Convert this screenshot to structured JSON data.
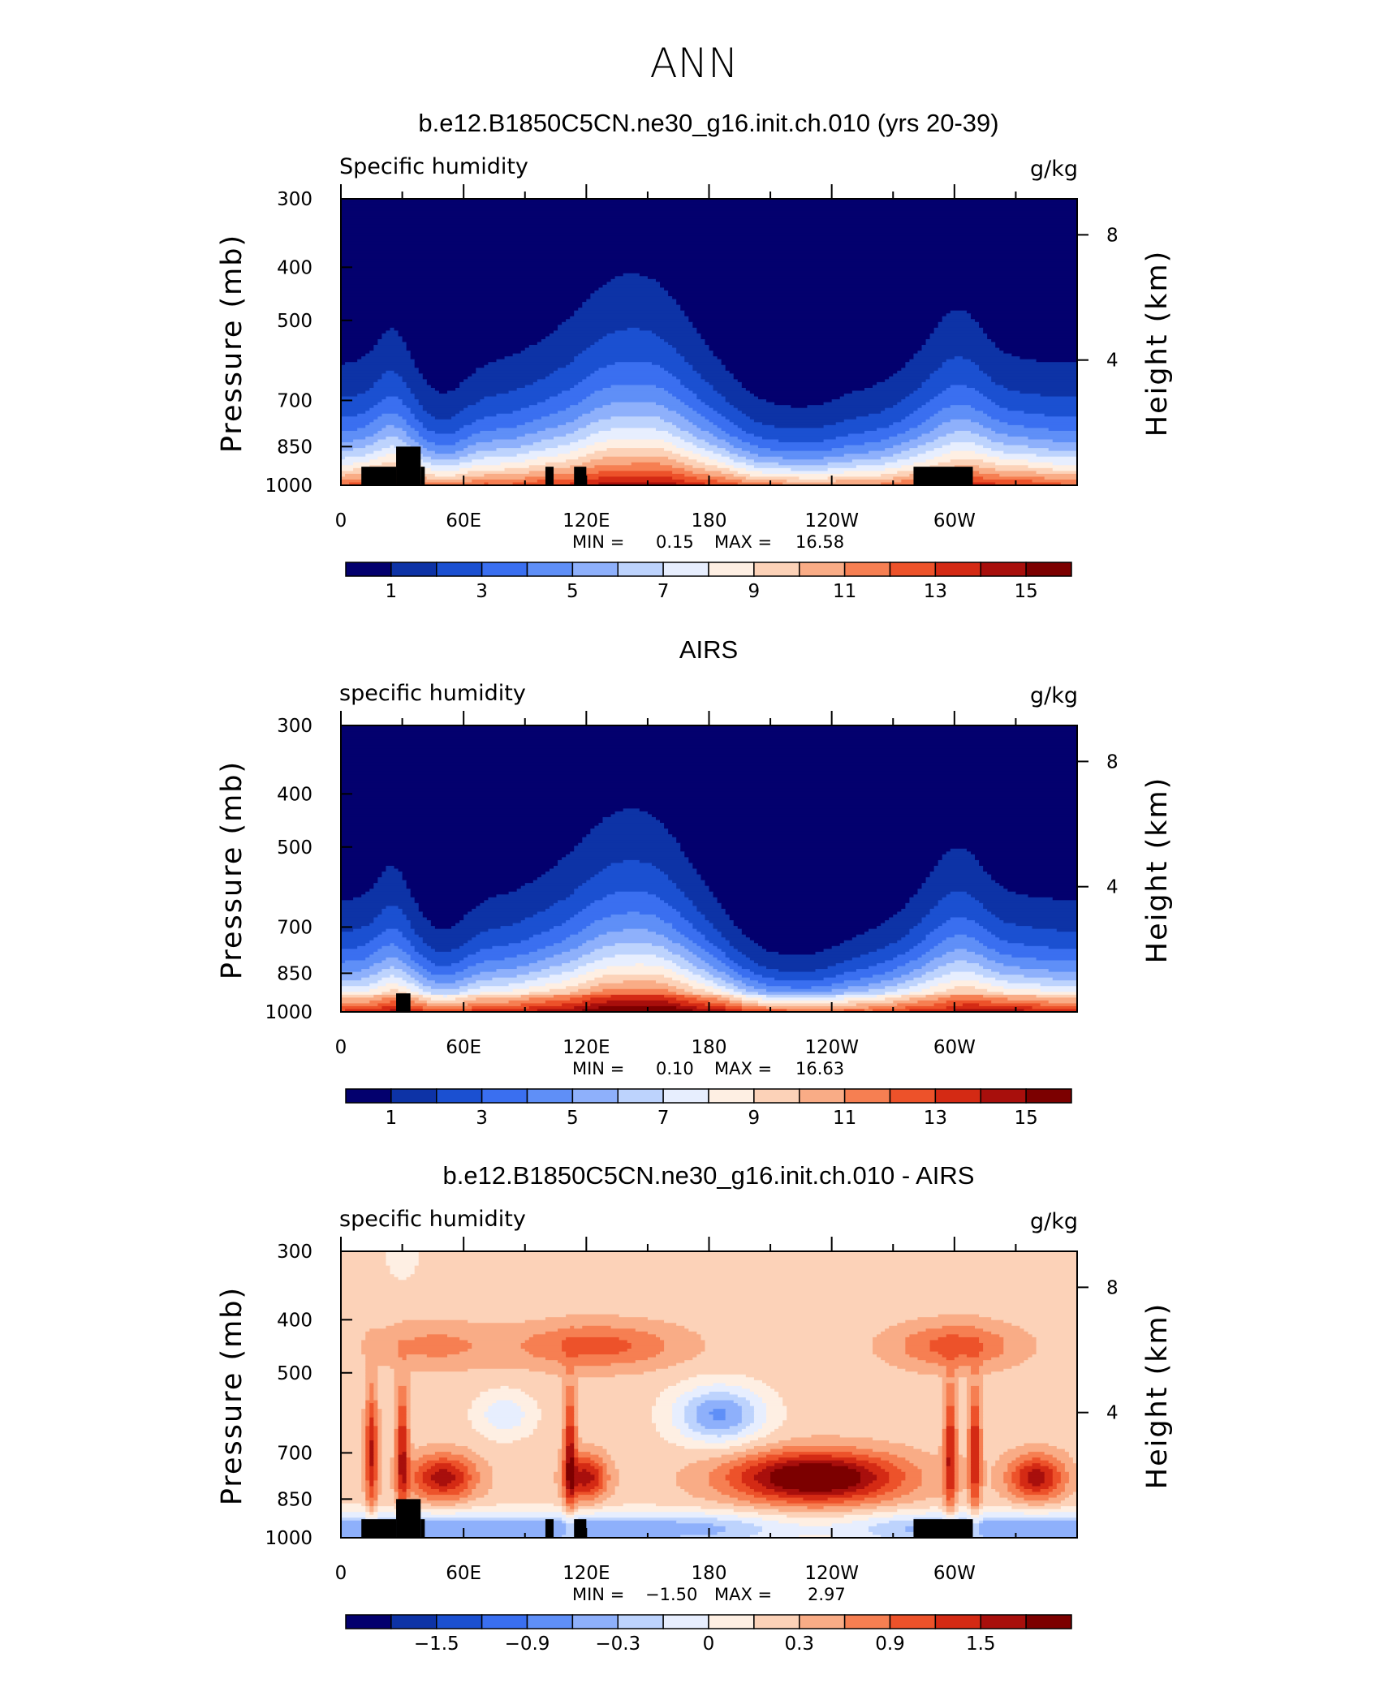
{
  "figure_title": "ANN",
  "cmap_abs": [
    "#03006e",
    "#0d33a6",
    "#1b50d1",
    "#3a6ff0",
    "#5f8ff7",
    "#8eb0fb",
    "#bdd3fd",
    "#e7eefe",
    "#feefe3",
    "#fcd2b8",
    "#f9ac86",
    "#f67f52",
    "#ed522a",
    "#d42a14",
    "#a80f0c",
    "#7c0000"
  ],
  "cmap_diff": [
    "#03006e",
    "#0d33a6",
    "#1b50d1",
    "#3a6ff0",
    "#5f8ff7",
    "#8eb0fb",
    "#bdd3fd",
    "#e7eefe",
    "#feefe3",
    "#fcd2b8",
    "#f9ac86",
    "#f67f52",
    "#ed522a",
    "#d42a14",
    "#a80f0c",
    "#7c0000"
  ],
  "chart_data": [
    {
      "type": "heatmap",
      "title": "b.e12.B1850C5CN.ne30_g16.init.ch.010 (yrs 20-39)",
      "left_label": "Specific humidity",
      "right_label": "g/kg",
      "xlabel": "",
      "ylabel": "Pressure (mb)",
      "y2label": "Height (km)",
      "x_ticks": [
        "0",
        "60E",
        "120E",
        "180",
        "120W",
        "60W"
      ],
      "x_tick_values": [
        0,
        60,
        120,
        180,
        240,
        300
      ],
      "xlim": [
        0,
        360
      ],
      "y_ticks": [
        "300",
        "400",
        "500",
        "700",
        "850",
        "1000"
      ],
      "y_tick_values": [
        300,
        400,
        500,
        700,
        850,
        1000
      ],
      "ylim": [
        300,
        1000
      ],
      "y2_ticks": [
        "8",
        "4"
      ],
      "y2_tick_values": [
        8,
        4
      ],
      "min_label": "MIN =",
      "min_value": "0.15",
      "max_label": "MAX =",
      "max_value": "16.58",
      "colorbar_labels": [
        "1",
        "3",
        "5",
        "7",
        "9",
        "11",
        "13",
        "15"
      ],
      "colorbar_label_values": [
        1,
        3,
        5,
        7,
        9,
        11,
        13,
        15
      ],
      "colorbar_range": [
        0,
        16
      ],
      "field": "model",
      "terrain_blocks": [
        [
          10,
          27,
          925,
          1000
        ],
        [
          27,
          39,
          850,
          1000
        ],
        [
          39,
          41,
          925,
          1000
        ],
        [
          100,
          104,
          925,
          1000
        ],
        [
          114,
          120,
          925,
          1000
        ],
        [
          280,
          309,
          925,
          1000
        ]
      ]
    },
    {
      "type": "heatmap",
      "title": "AIRS",
      "left_label": "specific humidity",
      "right_label": "g/kg",
      "xlabel": "",
      "ylabel": "Pressure (mb)",
      "y2label": "Height (km)",
      "x_ticks": [
        "0",
        "60E",
        "120E",
        "180",
        "120W",
        "60W"
      ],
      "x_tick_values": [
        0,
        60,
        120,
        180,
        240,
        300
      ],
      "xlim": [
        0,
        360
      ],
      "y_ticks": [
        "300",
        "400",
        "500",
        "700",
        "850",
        "1000"
      ],
      "y_tick_values": [
        300,
        400,
        500,
        700,
        850,
        1000
      ],
      "ylim": [
        300,
        1000
      ],
      "y2_ticks": [
        "8",
        "4"
      ],
      "y2_tick_values": [
        8,
        4
      ],
      "min_label": "MIN =",
      "min_value": "0.10",
      "max_label": "MAX =",
      "max_value": "16.63",
      "colorbar_labels": [
        "1",
        "3",
        "5",
        "7",
        "9",
        "11",
        "13",
        "15"
      ],
      "colorbar_label_values": [
        1,
        3,
        5,
        7,
        9,
        11,
        13,
        15
      ],
      "colorbar_range": [
        0,
        16
      ],
      "field": "obs",
      "terrain_blocks": [
        [
          27,
          34,
          925,
          1000
        ]
      ]
    },
    {
      "type": "heatmap",
      "title": "b.e12.B1850C5CN.ne30_g16.init.ch.010 - AIRS",
      "left_label": "specific humidity",
      "right_label": "g/kg",
      "xlabel": "",
      "ylabel": "Pressure (mb)",
      "y2label": "Height (km)",
      "x_ticks": [
        "0",
        "60E",
        "120E",
        "180",
        "120W",
        "60W"
      ],
      "x_tick_values": [
        0,
        60,
        120,
        180,
        240,
        300
      ],
      "xlim": [
        0,
        360
      ],
      "y_ticks": [
        "300",
        "400",
        "500",
        "700",
        "850",
        "1000"
      ],
      "y_tick_values": [
        300,
        400,
        500,
        700,
        850,
        1000
      ],
      "ylim": [
        300,
        1000
      ],
      "y2_ticks": [
        "8",
        "4"
      ],
      "y2_tick_values": [
        8,
        4
      ],
      "min_label": "MIN =",
      "min_value": "−1.50",
      "max_label": "MAX =",
      "max_value": "2.97",
      "colorbar_labels": [
        "−1.5",
        "−0.9",
        "−0.3",
        "0",
        "0.3",
        "0.9",
        "1.5"
      ],
      "colorbar_label_positions": [
        2,
        4,
        6,
        8,
        10,
        12,
        14
      ],
      "colorbar_range": [
        0,
        16
      ],
      "field": "diff",
      "terrain_blocks": [
        [
          10,
          27,
          925,
          1000
        ],
        [
          27,
          39,
          850,
          1000
        ],
        [
          39,
          41,
          925,
          1000
        ],
        [
          100,
          104,
          925,
          1000
        ],
        [
          114,
          120,
          925,
          1000
        ],
        [
          280,
          309,
          925,
          1000
        ]
      ]
    }
  ]
}
